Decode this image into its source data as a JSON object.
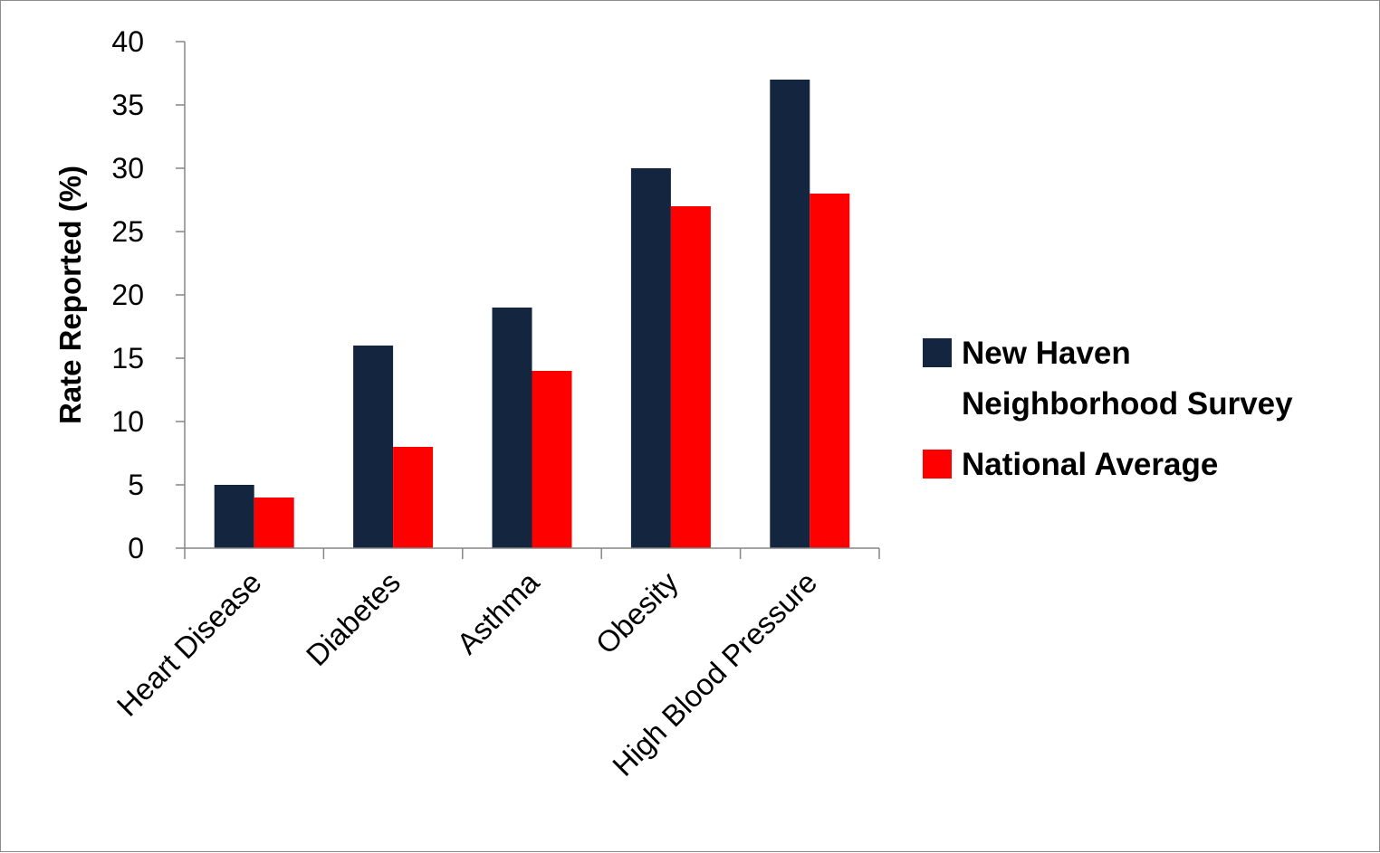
{
  "chart_data": {
    "type": "bar",
    "title": "",
    "xlabel": "",
    "ylabel": "Rate Reported (%)",
    "ylim": [
      0,
      40
    ],
    "yticks": [
      0,
      5,
      10,
      15,
      20,
      25,
      30,
      35,
      40
    ],
    "categories": [
      "Heart Disease",
      "Diabetes",
      "Asthma",
      "Obesity",
      "High Blood Pressure"
    ],
    "series": [
      {
        "name": "New Haven Neighborhood Survey",
        "legend_lines": [
          "New Haven",
          "Neighborhood Survey"
        ],
        "color": "#13253f",
        "values": [
          5,
          16,
          19,
          30,
          37
        ]
      },
      {
        "name": "National Average",
        "legend_lines": [
          "National Average"
        ],
        "color": "#ff0000",
        "values": [
          4,
          8,
          14,
          27,
          28
        ]
      }
    ],
    "grid": false,
    "legend_position": "right"
  }
}
